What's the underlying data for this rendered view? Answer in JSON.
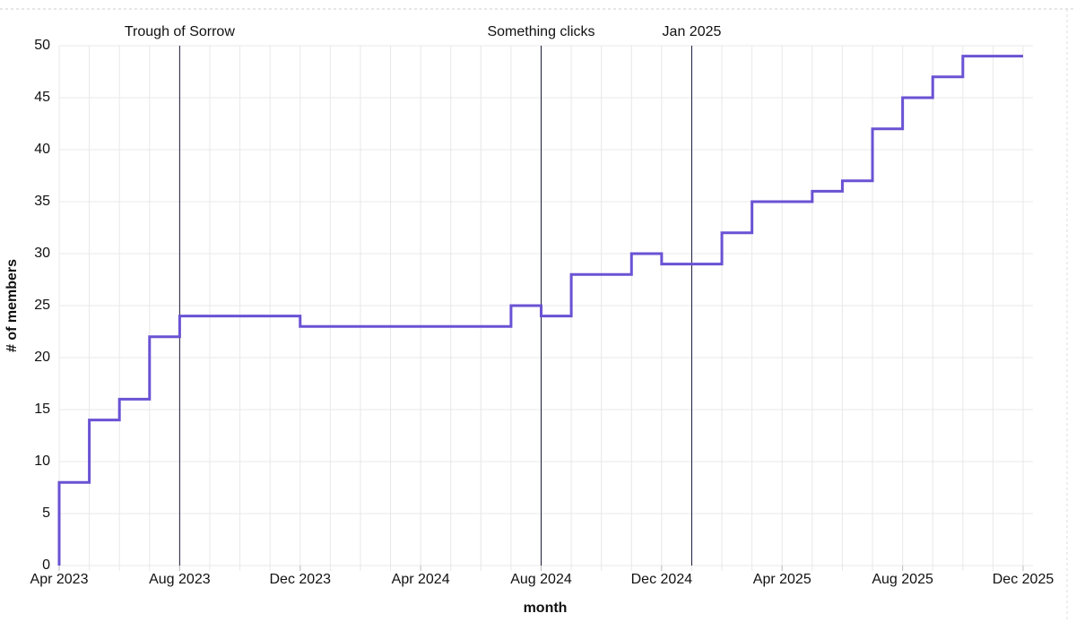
{
  "chart_data": {
    "type": "line",
    "step": "after",
    "x_label": "month",
    "y_label": "# of members",
    "x": [
      "2023-04",
      "2023-04",
      "2023-05",
      "2023-06",
      "2023-07",
      "2023-08",
      "2023-12",
      "2024-07",
      "2024-08",
      "2024-09",
      "2024-11",
      "2024-12",
      "2025-02",
      "2025-03",
      "2025-05",
      "2025-06",
      "2025-07",
      "2025-08",
      "2025-09",
      "2025-10",
      "2025-12"
    ],
    "series": [
      {
        "name": "# of members",
        "color": "#6a52d4",
        "values": [
          0,
          8,
          14,
          16,
          22,
          24,
          23,
          25,
          24,
          28,
          30,
          29,
          32,
          35,
          36,
          37,
          42,
          45,
          47,
          49,
          49
        ]
      }
    ],
    "xlim": [
      "2023-04",
      "2025-12"
    ],
    "xticks": [
      {
        "value": "2023-04",
        "label": "Apr 2023"
      },
      {
        "value": "2023-08",
        "label": "Aug 2023"
      },
      {
        "value": "2023-12",
        "label": "Dec 2023"
      },
      {
        "value": "2024-04",
        "label": "Apr 2024"
      },
      {
        "value": "2024-08",
        "label": "Aug 2024"
      },
      {
        "value": "2024-12",
        "label": "Dec 2024"
      },
      {
        "value": "2025-04",
        "label": "Apr 2025"
      },
      {
        "value": "2025-08",
        "label": "Aug 2025"
      },
      {
        "value": "2025-12",
        "label": "Dec 2025"
      }
    ],
    "ylim": [
      0,
      50
    ],
    "yticks": [
      0,
      5,
      10,
      15,
      20,
      25,
      30,
      35,
      40,
      45,
      50
    ],
    "grid": true,
    "annotations": [
      {
        "x": "2023-08",
        "text": "Trough of Sorrow"
      },
      {
        "x": "2024-08",
        "text": "Something clicks"
      },
      {
        "x": "2025-01",
        "text": "Jan 2025"
      }
    ]
  }
}
